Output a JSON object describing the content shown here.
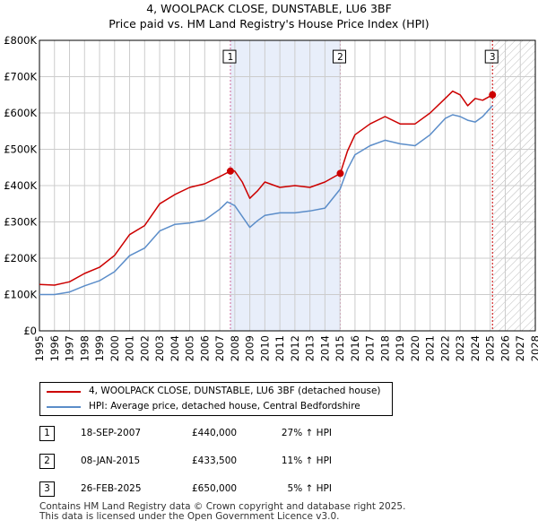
{
  "title": "4, WOOLPACK CLOSE, DUNSTABLE, LU6 3BF",
  "subtitle": "Price paid vs. HM Land Registry's House Price Index (HPI)",
  "colors": {
    "red": "#cc0000",
    "blue": "#5b8dc9",
    "grid": "#cccccc",
    "shade": "#e8eefa"
  },
  "chart_data": {
    "type": "line",
    "title": "4, WOOLPACK CLOSE, DUNSTABLE, LU6 3BF",
    "subtitle": "Price paid vs. HM Land Registry's House Price Index (HPI)",
    "xlim": [
      1995,
      2028
    ],
    "ylim": [
      0,
      800000
    ],
    "x_ticks": [
      "1995",
      "1996",
      "1997",
      "1998",
      "1999",
      "2000",
      "2001",
      "2002",
      "2003",
      "2004",
      "2005",
      "2006",
      "2007",
      "2008",
      "2009",
      "2010",
      "2011",
      "2012",
      "2013",
      "2014",
      "2015",
      "2016",
      "2017",
      "2018",
      "2019",
      "2020",
      "2021",
      "2022",
      "2023",
      "2024",
      "2025",
      "2026",
      "2027",
      "2028"
    ],
    "y_ticks": [
      "£0",
      "£100K",
      "£200K",
      "£300K",
      "£400K",
      "£500K",
      "£600K",
      "£700K",
      "£800K"
    ],
    "series": [
      {
        "name": "4, WOOLPACK CLOSE, DUNSTABLE, LU6 3BF (detached house)",
        "color": "#cc0000",
        "x": [
          1995,
          1996,
          1997,
          1998,
          1999,
          2000,
          2001,
          2002,
          2003,
          2004,
          2005,
          2006,
          2007,
          2007.71,
          2008.0,
          2008.5,
          2009.0,
          2009.5,
          2010,
          2011,
          2012,
          2013,
          2014,
          2015.02,
          2015.5,
          2016,
          2017,
          2018,
          2019,
          2020,
          2021,
          2022,
          2022.5,
          2023,
          2023.5,
          2024,
          2024.5,
          2025.15
        ],
        "y": [
          128000,
          126000,
          135000,
          158000,
          175000,
          208000,
          265000,
          290000,
          350000,
          375000,
          395000,
          405000,
          425000,
          440000,
          440000,
          410000,
          365000,
          385000,
          410000,
          395000,
          400000,
          395000,
          410000,
          433500,
          495000,
          540000,
          570000,
          590000,
          570000,
          570000,
          600000,
          640000,
          660000,
          650000,
          620000,
          640000,
          635000,
          650000
        ]
      },
      {
        "name": "HPI: Average price, detached house, Central Bedfordshire",
        "color": "#5b8dc9",
        "x": [
          1995,
          1996,
          1997,
          1998,
          1999,
          2000,
          2001,
          2002,
          2003,
          2004,
          2005,
          2006,
          2007,
          2007.5,
          2008.0,
          2008.5,
          2009.0,
          2009.5,
          2010,
          2011,
          2012,
          2013,
          2014,
          2015,
          2015.5,
          2016,
          2017,
          2018,
          2019,
          2020,
          2021,
          2022,
          2022.5,
          2023,
          2023.5,
          2024,
          2024.5,
          2025.15
        ],
        "y": [
          100000,
          100000,
          107000,
          124000,
          138000,
          163000,
          207000,
          228000,
          275000,
          293000,
          297000,
          305000,
          335000,
          355000,
          345000,
          315000,
          285000,
          303000,
          318000,
          325000,
          325000,
          330000,
          338000,
          390000,
          445000,
          485000,
          510000,
          525000,
          515000,
          510000,
          540000,
          585000,
          595000,
          590000,
          580000,
          575000,
          590000,
          620000
        ]
      }
    ],
    "sales": [
      {
        "label": "1",
        "date": "18-SEP-2007",
        "price": "£440,000",
        "hpi": "27% ↑ HPI",
        "x": 2007.71,
        "y": 440000
      },
      {
        "label": "2",
        "date": "08-JAN-2015",
        "price": "£433,500",
        "hpi": "11% ↑ HPI",
        "x": 2015.02,
        "y": 433500
      },
      {
        "label": "3",
        "date": "26-FEB-2025",
        "price": "£650,000",
        "hpi": "5% ↑ HPI",
        "x": 2025.15,
        "y": 650000
      }
    ],
    "shaded_ranges": [
      [
        2007.71,
        2015.02
      ]
    ],
    "hatched_after": 2025.15,
    "legend": [
      "4, WOOLPACK CLOSE, DUNSTABLE, LU6 3BF (detached house)",
      "HPI: Average price, detached house, Central Bedfordshire"
    ]
  },
  "footer": {
    "line1": "Contains HM Land Registry data © Crown copyright and database right 2025.",
    "line2": "This data is licensed under the Open Government Licence v3.0."
  }
}
